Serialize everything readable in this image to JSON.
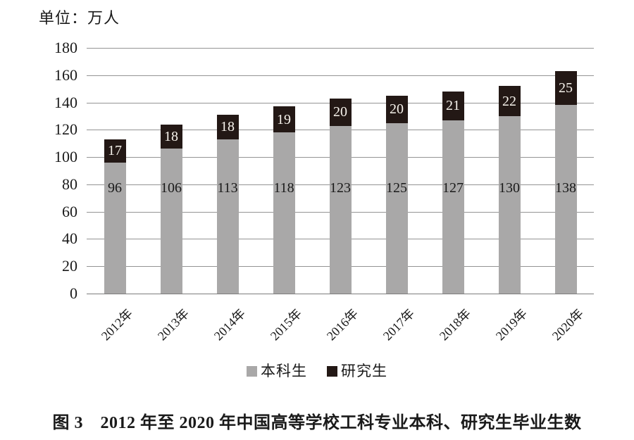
{
  "unit_label": "单位：万人",
  "caption": "图 3　2012 年至 2020 年中国高等学校工科专业本科、研究生毕业生数",
  "colors": {
    "undergrad_bar": "#a9a8a8",
    "graduate_bar": "#231815",
    "gridline": "#949494",
    "baseline": "#7d7d7d",
    "dark_text": "#1a1a1a",
    "light_bar_label": "#f7f3ec"
  },
  "legend": {
    "items": [
      {
        "label": "本科生",
        "color": "#a9a8a8"
      },
      {
        "label": "研究生",
        "color": "#231815"
      }
    ]
  },
  "chart_data": {
    "type": "bar",
    "stacked": true,
    "title": "",
    "xlabel": "",
    "ylabel": "单位：万人",
    "categories": [
      "2012年",
      "2013年",
      "2014年",
      "2015年",
      "2016年",
      "2017年",
      "2018年",
      "2019年",
      "2020年"
    ],
    "series": [
      {
        "name": "本科生",
        "color": "#a9a8a8",
        "values": [
          96,
          106,
          113,
          118,
          123,
          125,
          127,
          130,
          138
        ]
      },
      {
        "name": "研究生",
        "color": "#231815",
        "values": [
          17,
          18,
          18,
          19,
          20,
          20,
          21,
          22,
          25
        ]
      }
    ],
    "ylim": [
      0,
      180
    ],
    "yticks": [
      0,
      20,
      40,
      60,
      80,
      100,
      120,
      140,
      160,
      180
    ],
    "grid": true,
    "legend_position": "bottom"
  }
}
